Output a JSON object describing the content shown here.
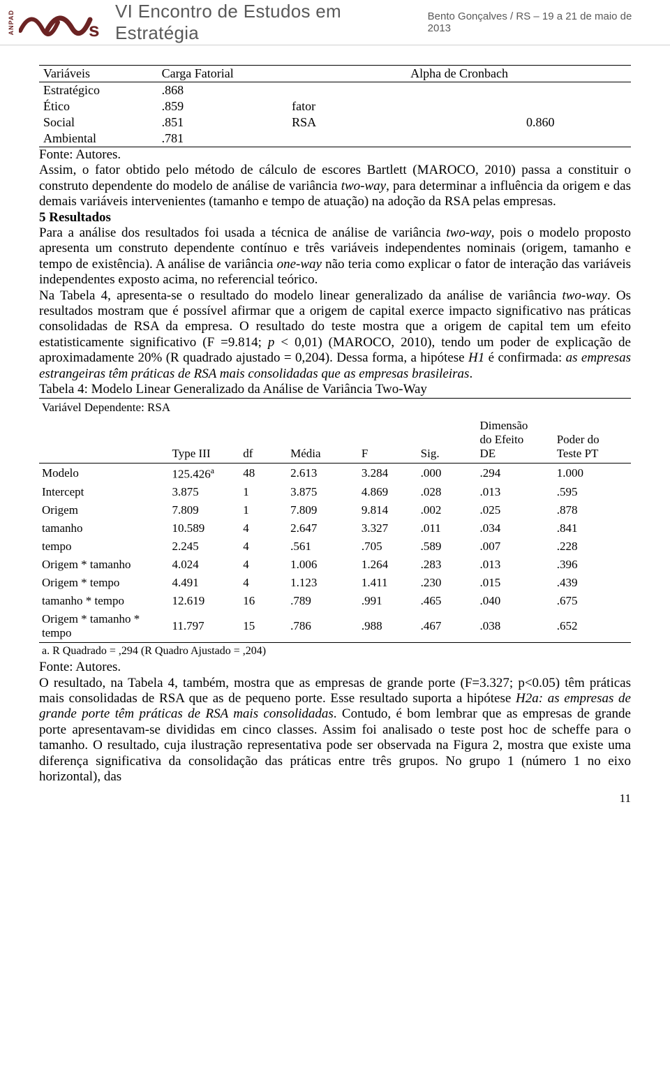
{
  "header": {
    "anpad": "ANPAD",
    "title": "VI Encontro de Estudos em Estratégia",
    "right": "Bento Gonçalves / RS – 19 a 21 de maio de 2013"
  },
  "table1": {
    "head": {
      "c1": "Variáveis",
      "c2": "Carga Fatorial",
      "c3": "Alpha de Cronbach"
    },
    "rows": {
      "r0": {
        "c1": "Estratégico",
        "c2": ".868",
        "c3": ""
      },
      "r1": {
        "c1": "Ético",
        "c2": ".859",
        "c3": "fator"
      },
      "r2": {
        "c1": "Social",
        "c2": ".851",
        "c3": "RSA",
        "c4": "0.860"
      },
      "r3": {
        "c1": "Ambiental",
        "c2": ".781",
        "c3": ""
      }
    },
    "source": "Fonte: Autores."
  },
  "para1": "Assim, o fator obtido pelo método de cálculo de escores Bartlett (MAROCO, 2010) passa a constituir o construto dependente do modelo de análise de variância ",
  "para1_it": "two-way",
  "para1_b": ", para determinar a influência da origem e das demais variáveis intervenientes (tamanho e tempo de atuação) na adoção da RSA pelas empresas.",
  "heading5": "5 Resultados",
  "para2a": "Para a análise dos resultados foi usada a técnica de análise de variância ",
  "para2a_it": "two-way",
  "para2a_b": ", pois o modelo proposto apresenta um construto dependente contínuo e três variáveis independentes nominais (origem, tamanho e tempo de existência). A análise de variância ",
  "para2a_it2": "one-way",
  "para2a_c": " não teria como explicar o fator de interação das variáveis independentes exposto acima, no referencial teórico.",
  "para3a": "Na Tabela 4, apresenta-se o resultado do modelo linear generalizado da análise de variância ",
  "para3_it": "two-way",
  "para3b": ". Os resultados mostram que é possível afirmar que a origem de capital exerce impacto significativo nas práticas consolidadas de RSA da empresa. O resultado do teste mostra que a origem de capital tem um efeito estatisticamente significativo (F =9.814; ",
  "para3_it2": "p",
  "para3c": " < 0,01) (MAROCO, 2010), tendo um poder de explicação de aproximadamente 20% (R quadrado ajustado = 0,204). Dessa forma, a hipótese ",
  "para3_it3": "H1",
  "para3d": " é confirmada: ",
  "para3_it4": "as empresas estrangeiras têm práticas de RSA mais consolidadas que as empresas brasileiras",
  "para3e": ".",
  "tab4_caption": "Tabela 4:  Modelo Linear Generalizado da Análise de Variância Two-Way",
  "tab4_depvar": "Variável Dependente: RSA",
  "tab4_head": {
    "type3": "Type III",
    "df": "df",
    "media": "Média",
    "f": "F",
    "sig": "Sig.",
    "dim1": "Dimensão",
    "dim2": "do Efeito",
    "dim3": "DE",
    "pt1": "Poder do",
    "pt2": "Teste PT"
  },
  "tab4_rows": {
    "r0": {
      "c0": "Modelo",
      "c1": "125.426",
      "c1s": "a",
      "c2": "48",
      "c3": "2.613",
      "c4": "3.284",
      "c5": ".000",
      "c6": ".294",
      "c7": "1.000"
    },
    "r1": {
      "c0": "Intercept",
      "c1": "3.875",
      "c2": "1",
      "c3": "3.875",
      "c4": "4.869",
      "c5": ".028",
      "c6": ".013",
      "c7": ".595"
    },
    "r2": {
      "c0": "Origem",
      "c1": "7.809",
      "c2": "1",
      "c3": "7.809",
      "c4": "9.814",
      "c5": ".002",
      "c6": ".025",
      "c7": ".878"
    },
    "r3": {
      "c0": "tamanho",
      "c1": "10.589",
      "c2": "4",
      "c3": "2.647",
      "c4": "3.327",
      "c5": ".011",
      "c6": ".034",
      "c7": ".841"
    },
    "r4": {
      "c0": "tempo",
      "c1": "2.245",
      "c2": "4",
      "c3": ".561",
      "c4": ".705",
      "c5": ".589",
      "c6": ".007",
      "c7": ".228"
    },
    "r5": {
      "c0": "Origem * tamanho",
      "c1": "4.024",
      "c2": "4",
      "c3": "1.006",
      "c4": "1.264",
      "c5": ".283",
      "c6": ".013",
      "c7": ".396"
    },
    "r6": {
      "c0": "Origem * tempo",
      "c1": "4.491",
      "c2": "4",
      "c3": "1.123",
      "c4": "1.411",
      "c5": ".230",
      "c6": ".015",
      "c7": ".439"
    },
    "r7": {
      "c0": "tamanho * tempo",
      "c1": "12.619",
      "c2": "16",
      "c3": ".789",
      "c4": ".991",
      "c5": ".465",
      "c6": ".040",
      "c7": ".675"
    },
    "r8": {
      "c0": "Origem * tamanho * tempo",
      "c1": "11.797",
      "c2": "15",
      "c3": ".786",
      "c4": ".988",
      "c5": ".467",
      "c6": ".038",
      "c7": ".652"
    }
  },
  "tab4_footnote": "a. R Quadrado = ,294 (R Quadro Ajustado = ,204)",
  "tab4_source": "Fonte: Autores.",
  "para4a": "O resultado, na Tabela 4, também, mostra que as empresas de grande porte (F=3.327; p<0.05) têm práticas mais consolidadas de RSA que as de pequeno porte. Esse resultado suporta a hipótese ",
  "para4_it1": "H2a: as empresas de grande porte têm práticas de RSA mais consolidadas",
  "para4b": ". Contudo, é bom lembrar que as empresas de grande porte apresentavam-se divididas em cinco classes. Assim foi analisado o teste post hoc de scheffe para o tamanho. O resultado, cuja ilustração representativa pode ser observada na Figura 2, mostra que existe uma diferença significativa da consolidação das práticas entre três grupos. No grupo 1 (número 1 no eixo horizontal), das",
  "page_number": "11"
}
